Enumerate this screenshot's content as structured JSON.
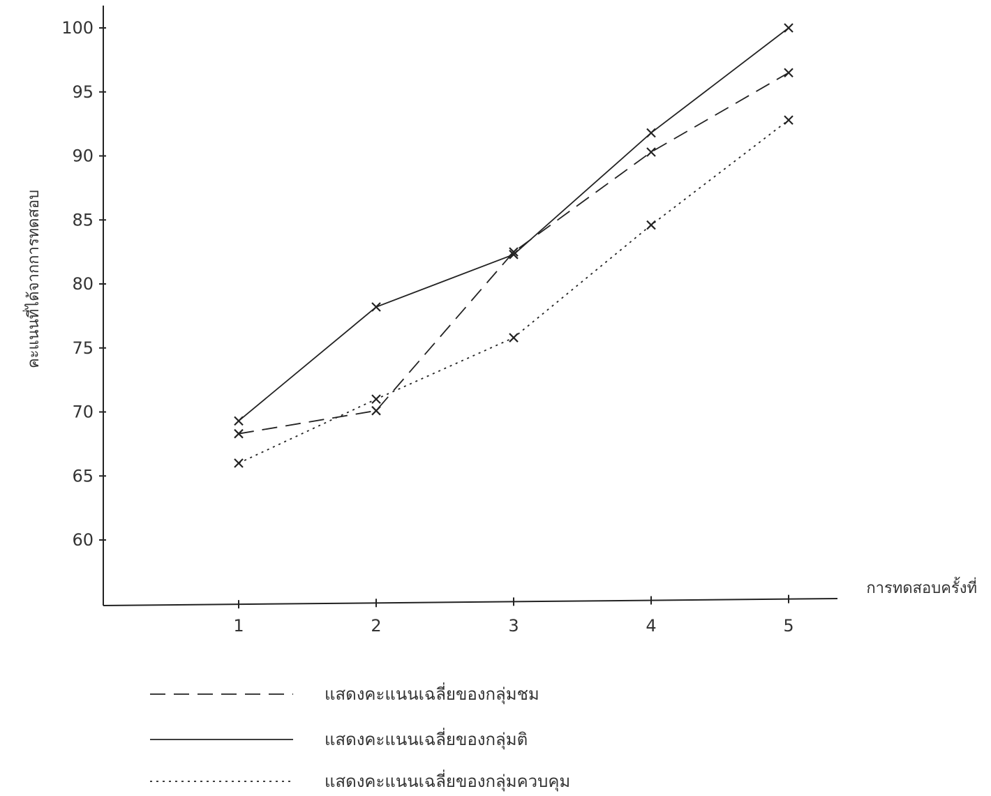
{
  "chart_data": {
    "type": "line",
    "title": "",
    "ylabel": "คะแนนที่ได้จากการทดสอบ",
    "xlabel": "การทดสอบครั้งที่",
    "categories": [
      "1",
      "2",
      "3",
      "4",
      "5"
    ],
    "x": [
      1,
      2,
      3,
      4,
      5
    ],
    "ylim": [
      55,
      100
    ],
    "yticks": [
      60,
      65,
      70,
      75,
      80,
      85,
      90,
      95,
      100
    ],
    "grid": false,
    "legend_position": "bottom",
    "series": [
      {
        "name": "แสดงคะแนนเฉลี่ยของกลุ่มชม",
        "style": "dashed",
        "values": [
          68.3,
          70.1,
          82.5,
          90.3,
          96.5
        ]
      },
      {
        "name": "แสดงคะแนนเฉลี่ยของกลุ่มติ",
        "style": "solid",
        "values": [
          69.3,
          78.2,
          82.3,
          91.8,
          100
        ]
      },
      {
        "name": "แสดงคะแนนเฉลี่ยของกลุ่มควบคุม",
        "style": "dotted",
        "values": [
          66.0,
          71.0,
          75.8,
          84.6,
          92.8
        ]
      }
    ],
    "colors": {
      "ink": "#222222"
    }
  }
}
